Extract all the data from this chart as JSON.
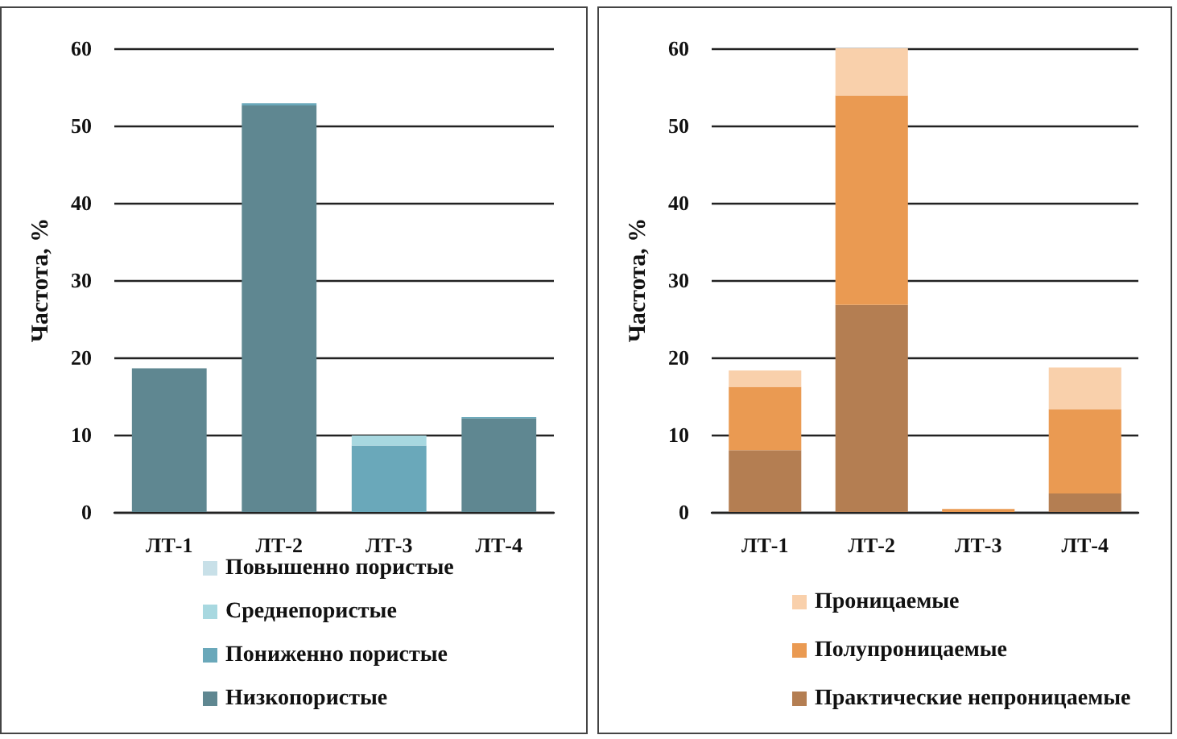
{
  "chart_data": [
    {
      "type": "bar",
      "stacked": true,
      "ylabel": "Частота, %",
      "categories": [
        "ЛТ-1",
        "ЛТ-2",
        "ЛТ-3",
        "ЛТ-4"
      ],
      "ylim": [
        0,
        60
      ],
      "yticks": [
        0,
        10,
        20,
        30,
        40,
        50,
        60
      ],
      "grid": "y",
      "legend": "bottom",
      "series": [
        {
          "name": "Низкопористые",
          "color": "#5f8791",
          "values": [
            18.6,
            52.6,
            0,
            12.1
          ]
        },
        {
          "name": "Пониженно пористые",
          "color": "#6aa8ba",
          "values": [
            0,
            0.3,
            8.6,
            0.2
          ]
        },
        {
          "name": "Среднепористые",
          "color": "#a8d8e0",
          "values": [
            0,
            null,
            1.3,
            0
          ]
        },
        {
          "name": "Повышенно пористые",
          "color": "#c8e0e8",
          "values": [
            0,
            0,
            0,
            0
          ]
        }
      ]
    },
    {
      "type": "bar",
      "stacked": true,
      "ylabel": "Частота, %",
      "categories": [
        "ЛТ-1",
        "ЛТ-2",
        "ЛТ-3",
        "ЛТ-4"
      ],
      "ylim": [
        0,
        60
      ],
      "yticks": [
        0,
        10,
        20,
        30,
        40,
        50,
        60
      ],
      "grid": "y",
      "legend": "bottom",
      "series": [
        {
          "name": "Практические непроницаемые",
          "color": "#b47e52",
          "values": [
            8.0,
            26.8,
            0,
            2.4
          ]
        },
        {
          "name": "Полупроницаемые",
          "color": "#ea9a52",
          "values": [
            8.2,
            27.1,
            0.4,
            10.9
          ]
        },
        {
          "name": "Проницаемые",
          "color": "#f9d0ab",
          "values": [
            2.1,
            6.1,
            0,
            5.4
          ]
        }
      ]
    }
  ]
}
